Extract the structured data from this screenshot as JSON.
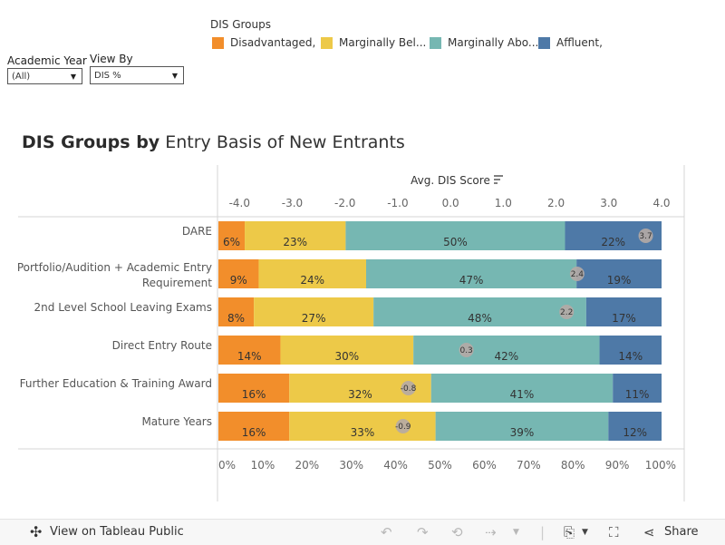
{
  "legend": {
    "title": "DIS Groups",
    "items": [
      {
        "label": "Disadvantaged,",
        "color": "#f28e2b"
      },
      {
        "label": "Marginally Bel...",
        "color": "#edc948"
      },
      {
        "label": "Marginally Abo...",
        "color": "#76b7b2"
      },
      {
        "label": "Affluent,",
        "color": "#4e79a7"
      }
    ]
  },
  "filters": {
    "academic_year": {
      "label": "Academic Year",
      "value": "(All)"
    },
    "view_by": {
      "label": "View By",
      "value": "DIS %"
    }
  },
  "title": {
    "bold": "DIS Groups by",
    "rest": "Entry Basis of New Entrants"
  },
  "chart_data": {
    "type": "bar",
    "orientation": "horizontal",
    "stacked": true,
    "categories": [
      "DARE",
      "Portfolio/Audition + Academic Entry Requirement",
      "2nd Level School Leaving Exams",
      "Direct Entry Route",
      "Further Education & Training Award",
      "Mature Years"
    ],
    "series": [
      {
        "name": "Disadvantaged,",
        "color": "#f28e2b",
        "values": [
          6,
          9,
          8,
          14,
          16,
          16
        ],
        "labels": [
          "6%",
          "9%",
          "8%",
          "14%",
          "16%",
          "16%"
        ]
      },
      {
        "name": "Marginally Bel...",
        "color": "#edc948",
        "values": [
          23,
          24,
          27,
          30,
          32,
          33
        ],
        "labels": [
          "23%",
          "24%",
          "27%",
          "30%",
          "32%",
          "33%"
        ]
      },
      {
        "name": "Marginally Abo...",
        "color": "#76b7b2",
        "values": [
          50,
          47,
          48,
          42,
          41,
          39
        ],
        "labels": [
          "50%",
          "47%",
          "48%",
          "42%",
          "41%",
          "39%"
        ]
      },
      {
        "name": "Affluent,",
        "color": "#4e79a7",
        "values": [
          22,
          19,
          17,
          14,
          11,
          12
        ],
        "labels": [
          "22%",
          "19%",
          "17%",
          "14%",
          "11%",
          "12%"
        ]
      }
    ],
    "bottom_axis": {
      "ticks": [
        0,
        10,
        20,
        30,
        40,
        50,
        60,
        70,
        80,
        90,
        100
      ],
      "tick_labels": [
        "0%",
        "10%",
        "20%",
        "30%",
        "40%",
        "50%",
        "60%",
        "70%",
        "80%",
        "90%",
        "100%"
      ],
      "range": [
        0,
        100
      ]
    },
    "top_axis": {
      "label": "Avg. DIS Score",
      "ticks": [
        -4,
        -3,
        -2,
        -1,
        0,
        1,
        2,
        3,
        4
      ],
      "tick_labels": [
        "-4.0",
        "-3.0",
        "-2.0",
        "-1.0",
        "0.0",
        "1.0",
        "2.0",
        "3.0",
        "4.0"
      ],
      "range": [
        -4.4,
        4.0
      ]
    },
    "avg_dis_score": {
      "values": [
        3.7,
        2.4,
        2.2,
        0.3,
        -0.8,
        -0.9
      ],
      "labels": [
        "3.7",
        "2.4",
        "2.2",
        "0.3",
        "-0.8",
        "-0.9"
      ],
      "color": "#b5aaa5"
    },
    "grid": false
  },
  "toolbar": {
    "view_on": "View on Tableau Public",
    "share": "Share",
    "icons": [
      "tableau-logo-icon",
      "undo-icon",
      "redo-icon",
      "revert-icon",
      "refresh-icon",
      "download-icon",
      "fullscreen-icon",
      "share-icon"
    ]
  }
}
